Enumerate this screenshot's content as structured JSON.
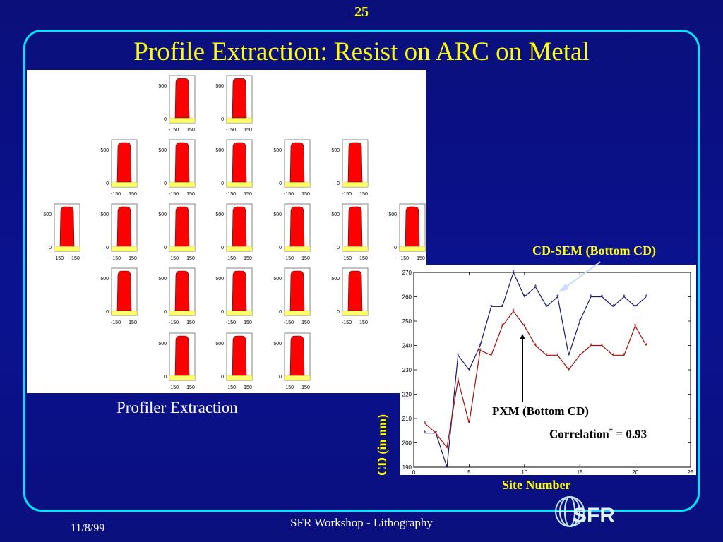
{
  "slide": {
    "number": "25",
    "title": "Profile Extraction: Resist on ARC on Metal",
    "caption": "Profiler Extraction",
    "footer_date": "11/8/99",
    "footer_center": "SFR Workshop - Lithography",
    "logo_text": "SFR"
  },
  "colors": {
    "background": "#0a107e",
    "frame": "#00e5ff",
    "title": "#ffff00",
    "resist": "#ff0000",
    "substrate": "#ffff66",
    "cdsem_series": "#1a1a6e",
    "pxm_series": "#a01010"
  },
  "profiles": {
    "ytick_top": "500",
    "ytick_bottom": "0",
    "xtick_left": "-150",
    "xtick_right": "150",
    "grid_layout": [
      [
        2,
        3
      ],
      [
        1,
        2,
        3,
        4,
        5
      ],
      [
        0,
        1,
        2,
        3,
        4,
        5,
        6
      ],
      [
        1,
        2,
        3,
        4,
        5
      ],
      [
        2,
        3,
        4
      ]
    ]
  },
  "annotations": {
    "cdsem": "CD-SEM (Bottom CD)",
    "pxm": "PXM (Bottom CD)",
    "correlation_prefix": "Correlation",
    "correlation_mark": "*",
    "correlation_suffix": " = 0.93",
    "ylabel": "CD (in nm)",
    "xlabel": "Site Number"
  },
  "chart_data": {
    "type": "line",
    "x": [
      1,
      2,
      3,
      4,
      5,
      6,
      7,
      8,
      9,
      10,
      11,
      12,
      13,
      14,
      15,
      16,
      17,
      18,
      19,
      20,
      21
    ],
    "series": [
      {
        "name": "CD-SEM (Bottom CD)",
        "values": [
          204,
          204,
          190,
          236,
          230,
          240,
          256,
          256,
          270,
          260,
          264,
          256,
          260,
          236,
          250,
          260,
          260,
          256,
          260,
          256,
          260
        ]
      },
      {
        "name": "PXM (Bottom CD)",
        "values": [
          208,
          204,
          198,
          226,
          208,
          238,
          236,
          248,
          254,
          248,
          240,
          236,
          236,
          230,
          236,
          240,
          240,
          236,
          236,
          248,
          240
        ]
      }
    ],
    "xlim": [
      0,
      25
    ],
    "ylim": [
      190,
      270
    ],
    "xticks": [
      "0",
      "5",
      "10",
      "15",
      "20",
      "25"
    ],
    "yticks": [
      "190",
      "200",
      "210",
      "220",
      "230",
      "240",
      "250",
      "260",
      "270"
    ],
    "xlabel": "Site Number",
    "ylabel": "CD (in nm)",
    "grid": false
  }
}
